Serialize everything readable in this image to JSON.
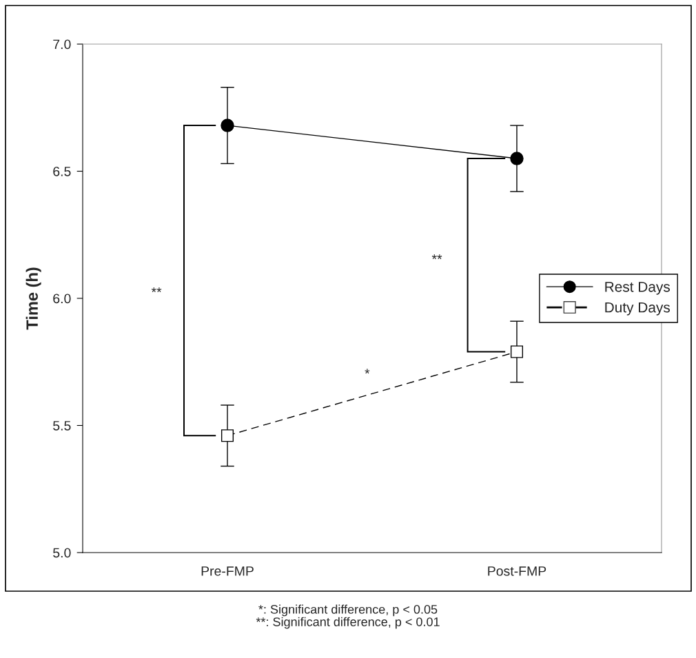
{
  "chart_data": {
    "type": "line",
    "ylabel": "Time (h)",
    "categories": [
      "Pre-FMP",
      "Post-FMP"
    ],
    "series": [
      {
        "name": "Rest Days",
        "color": "#000000",
        "values": [
          6.68,
          6.55
        ],
        "errors": [
          0.15,
          0.13
        ],
        "marker": "circle",
        "line_style": "solid"
      },
      {
        "name": "Duty Days",
        "color": "#000000",
        "values": [
          5.46,
          5.79
        ],
        "errors": [
          0.12,
          0.12
        ],
        "marker": "square",
        "line_style": "dashed"
      }
    ],
    "ylim": [
      5.0,
      7.0
    ],
    "yticks": [
      {
        "value": 5.0,
        "label": "5.0"
      },
      {
        "value": 5.5,
        "label": "5.5"
      },
      {
        "value": 6.0,
        "label": "6.0"
      },
      {
        "value": 6.5,
        "label": "6.5"
      },
      {
        "value": 7.0,
        "label": "7.0"
      }
    ],
    "grid": false,
    "legend": "right",
    "annotations": [
      "**",
      "**",
      "*",
      "*: Significant difference, p < 0.05\n**: Significant difference, p < 0.01"
    ]
  }
}
